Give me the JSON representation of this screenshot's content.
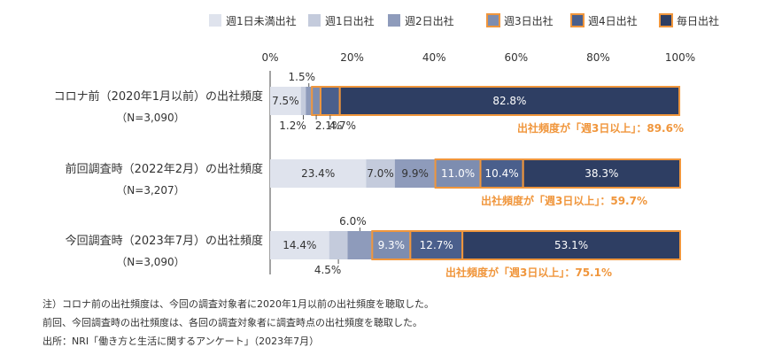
{
  "chart_data": {
    "type": "bar",
    "orientation": "horizontal",
    "stacked": true,
    "xlim": [
      0,
      100
    ],
    "x_ticks": [
      "0%",
      "20%",
      "40%",
      "60%",
      "80%",
      "100%"
    ],
    "grid": false,
    "legend_position": "top",
    "categories": [
      [
        "コロナ前（2020年1月以前）の出社頻度",
        "（N=3,090）"
      ],
      [
        "前回調査時（2022年2月）の出社頻度",
        "（N=3,207）"
      ],
      [
        "今回調査時（2023年7月）の出社頻度",
        "（N=3,090）"
      ]
    ],
    "series": [
      {
        "name": "週1日未満出社",
        "color": "#dfe3ed",
        "highlight": false,
        "values": [
          7.5,
          23.4,
          14.4
        ]
      },
      {
        "name": "週1日出社",
        "color": "#c4cbdc",
        "highlight": false,
        "values": [
          1.2,
          7.0,
          4.5
        ]
      },
      {
        "name": "週2日出社",
        "color": "#8e9bbb",
        "highlight": false,
        "values": [
          1.5,
          9.9,
          6.0
        ]
      },
      {
        "name": "週3日出社",
        "color": "#7d8db0",
        "highlight": true,
        "values": [
          2.1,
          11.0,
          9.3
        ]
      },
      {
        "name": "週4日出社",
        "color": "#4a5f8c",
        "highlight": true,
        "values": [
          4.7,
          10.4,
          12.7
        ]
      },
      {
        "name": "毎日出社",
        "color": "#2e3e63",
        "highlight": true,
        "values": [
          82.8,
          38.3,
          53.1
        ]
      }
    ],
    "data_labels": [
      [
        "7.5%",
        "1.2%",
        "1.5%",
        "2.1%",
        "4.7%",
        "82.8%"
      ],
      [
        "23.4%",
        "7.0%",
        "9.9%",
        "11.0%",
        "10.4%",
        "38.3%"
      ],
      [
        "14.4%",
        "4.5%",
        "6.0%",
        "9.3%",
        "12.7%",
        "53.1%"
      ]
    ],
    "summary_annotations": [
      "出社頻度が「週3日以上」：89.6%",
      "出社頻度が「週3日以上」：59.7%",
      "出社頻度が「週3日以上」：75.1%"
    ],
    "highlight_color": "#f0963c"
  },
  "notes": [
    "注）コロナ前の出社頻度は、今回の調査対象者に2020年1月以前の出社頻度を聴取した。",
    "前回、今回調査時の出社頻度は、各回の調査対象者に調査時点の出社頻度を聴取した。",
    "出所：NRI「働き方と生活に関するアンケート」（2023年7月）"
  ]
}
